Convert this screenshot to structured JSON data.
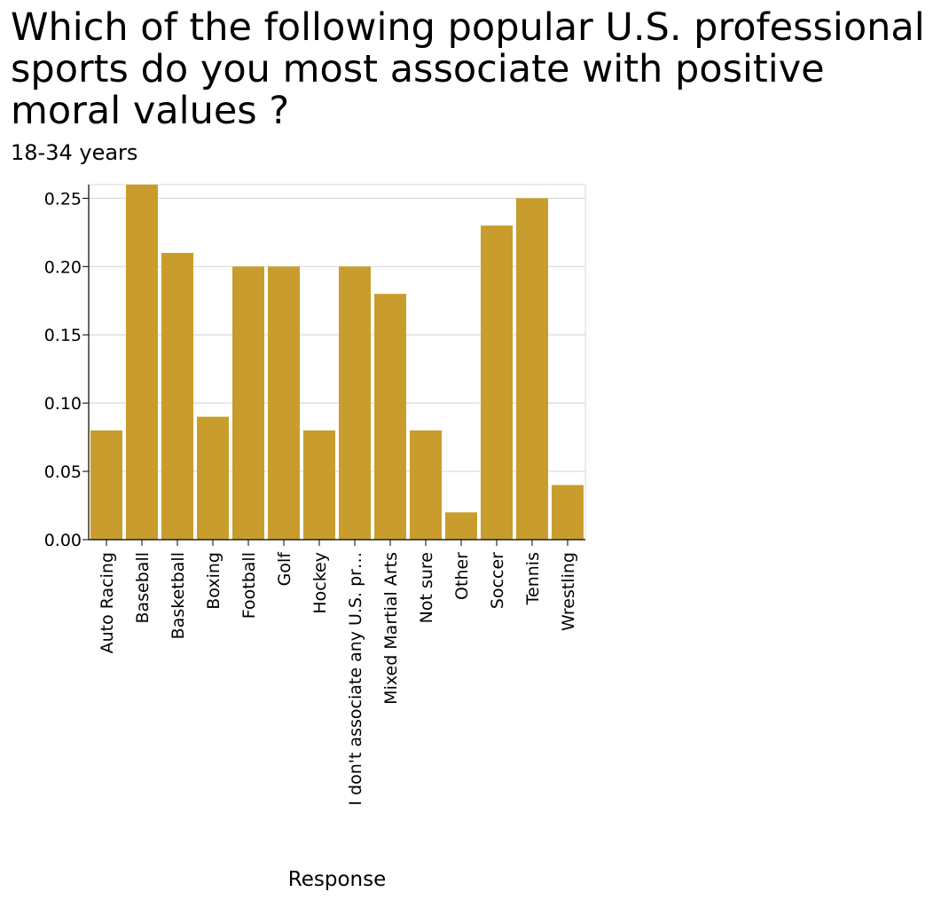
{
  "chart_data": {
    "type": "bar",
    "title": "Which of the following popular U.S. professional sports do you most associate with positive moral values ?",
    "subtitle": "18-34 years",
    "xlabel": "Response",
    "ylabel": "",
    "categories": [
      "Auto Racing",
      "Baseball",
      "Basketball",
      "Boxing",
      "Football",
      "Golf",
      "Hockey",
      "I don't associate any U.S. pr…",
      "Mixed Martial Arts",
      "Not sure",
      "Other",
      "Soccer",
      "Tennis",
      "Wrestling"
    ],
    "values": [
      0.08,
      0.26,
      0.21,
      0.09,
      0.2,
      0.2,
      0.08,
      0.2,
      0.18,
      0.08,
      0.02,
      0.23,
      0.25,
      0.04
    ],
    "ylim": [
      0,
      0.26
    ],
    "yticks": [
      "0.00",
      "0.05",
      "0.10",
      "0.15",
      "0.20",
      "0.25"
    ],
    "grid": true,
    "bar_color": "#c99d2d",
    "grid_color": "#d9d9d9"
  }
}
